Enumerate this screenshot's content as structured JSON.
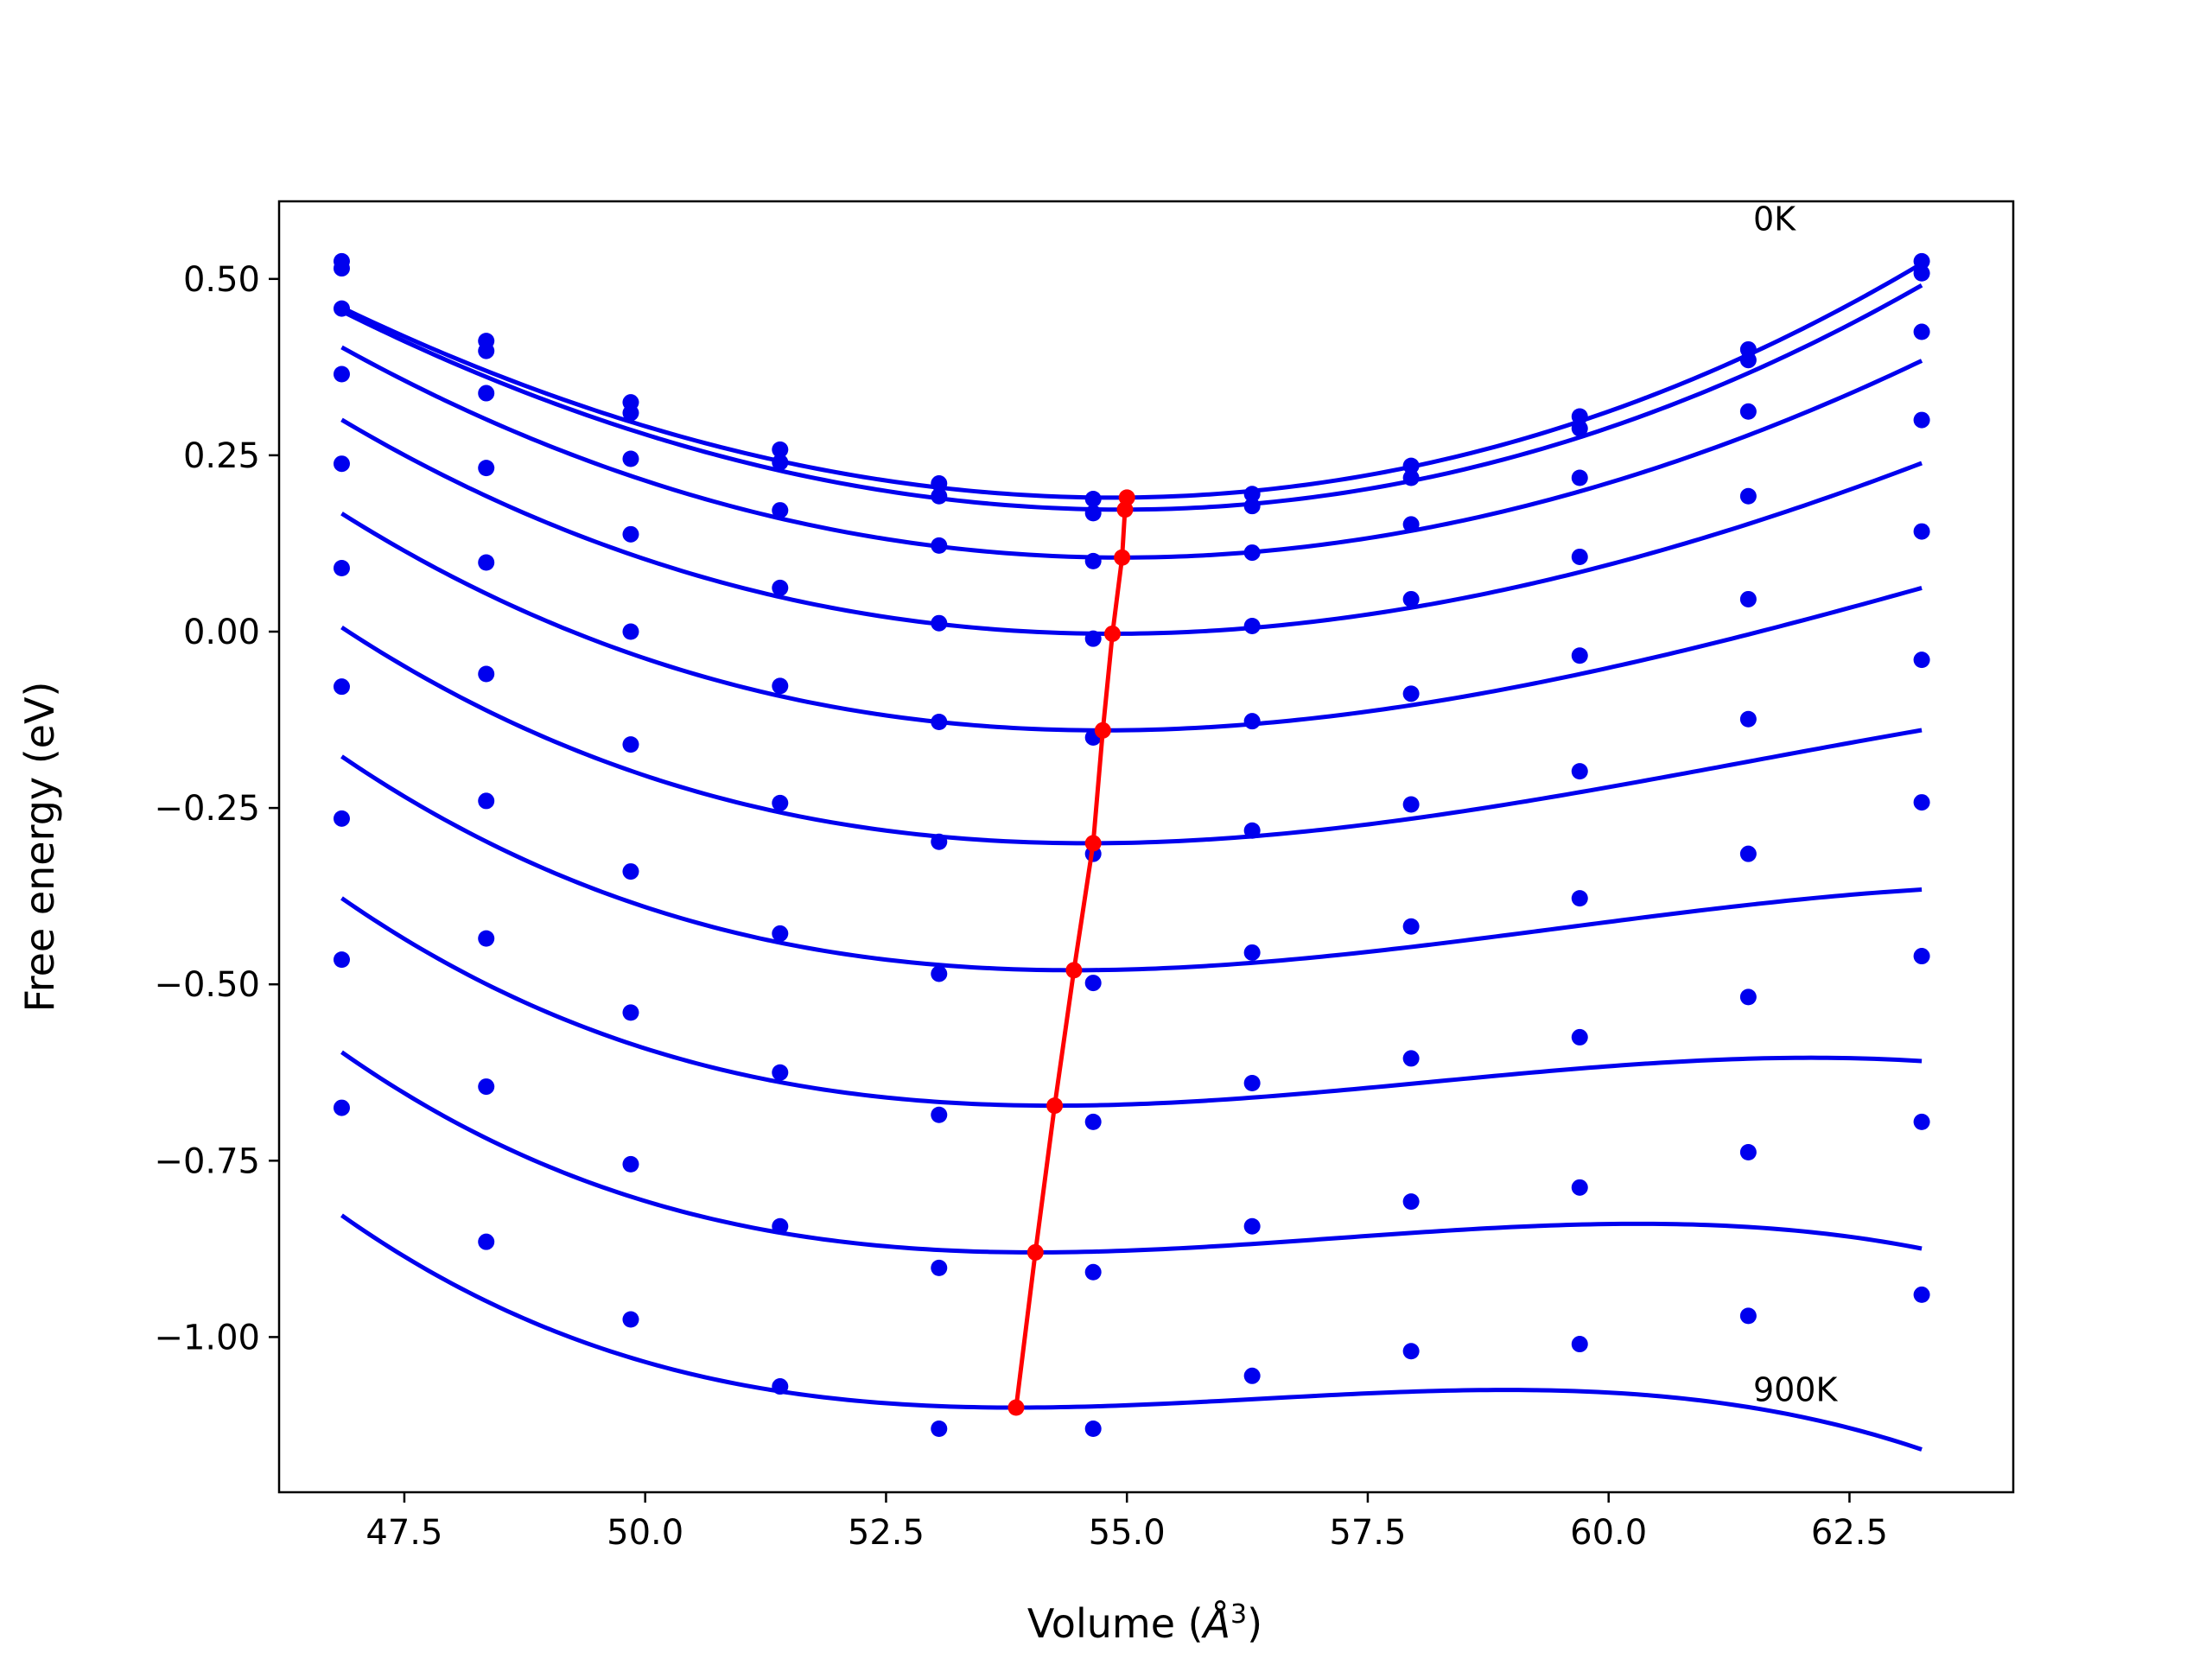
{
  "chart_data": {
    "type": "line",
    "xlabel": "Volume (",
    "xlabel_unit": "Å",
    "xlabel_exp": "3",
    "xlabel_close": ")",
    "ylabel": "Free energy (eV)",
    "xlim": [
      46.2,
      64.2
    ],
    "ylim": [
      -1.22,
      0.61
    ],
    "x_ticks": [
      47.5,
      50.0,
      52.5,
      55.0,
      57.5,
      60.0,
      62.5
    ],
    "x_tick_labels": [
      "47.5",
      "50.0",
      "52.5",
      "55.0",
      "57.5",
      "60.0",
      "62.5"
    ],
    "y_ticks": [
      0.5,
      0.25,
      0.0,
      -0.25,
      -0.5,
      -0.75,
      -1.0
    ],
    "y_tick_labels": [
      "0.50",
      "0.25",
      "0.00",
      "−0.25",
      "−0.50",
      "−0.75",
      "−1.00"
    ],
    "grid": false,
    "legend": "none",
    "annotations": [
      {
        "text": "0K",
        "x": 61.5,
        "y": 0.585
      },
      {
        "text": "900K",
        "x": 61.5,
        "y": -1.075
      }
    ],
    "volumes": [
      46.85,
      48.35,
      49.85,
      51.4,
      53.05,
      54.65,
      56.3,
      57.95,
      59.7,
      61.45,
      63.25
    ],
    "series": [
      {
        "points": [
          0.525,
          0.412,
          0.325,
          0.258,
          0.21,
          0.188,
          0.195,
          0.235,
          0.305,
          0.4,
          0.525
        ],
        "fit": {
          "v0": 54.85,
          "e0": 0.19,
          "a": 0.00445,
          "b": 3e-05
        }
      },
      {
        "points": [
          0.515,
          0.398,
          0.31,
          0.24,
          0.192,
          0.168,
          0.178,
          0.218,
          0.288,
          0.385,
          0.508
        ],
        "fit": {
          "v0": 54.95,
          "e0": 0.173,
          "a": 0.00445,
          "b": 2e-05
        }
      },
      {
        "points": [
          0.458,
          0.338,
          0.245,
          0.172,
          0.122,
          0.1,
          0.112,
          0.152,
          0.218,
          0.312,
          0.425
        ],
        "fit": {
          "v0": 54.95,
          "e0": 0.105,
          "a": 0.0043,
          "b": -3e-05
        }
      },
      {
        "points": [
          0.365,
          0.232,
          0.138,
          0.062,
          0.012,
          -0.01,
          0.008,
          0.046,
          0.106,
          0.192,
          0.3
        ],
        "fit": {
          "v0": 54.85,
          "e0": -0.003,
          "a": 0.0041,
          "b": -8e-05
        }
      },
      {
        "points": [
          0.238,
          0.098,
          0.0,
          -0.077,
          -0.128,
          -0.15,
          -0.127,
          -0.088,
          -0.034,
          0.046,
          0.142
        ],
        "fit": {
          "v0": 54.75,
          "e0": -0.14,
          "a": 0.0039,
          "b": -0.00013
        }
      },
      {
        "points": [
          0.09,
          -0.06,
          -0.16,
          -0.243,
          -0.298,
          -0.315,
          -0.282,
          -0.245,
          -0.198,
          -0.124,
          -0.04
        ],
        "fit": {
          "v0": 54.6,
          "e0": -0.3,
          "a": 0.0037,
          "b": -0.00018
        }
      },
      {
        "points": [
          -0.078,
          -0.24,
          -0.34,
          -0.428,
          -0.485,
          -0.498,
          -0.455,
          -0.418,
          -0.378,
          -0.315,
          -0.242
        ],
        "fit": {
          "v0": 54.45,
          "e0": -0.48,
          "a": 0.0035,
          "b": -0.00023
        }
      },
      {
        "points": [
          -0.265,
          -0.435,
          -0.54,
          -0.625,
          -0.685,
          -0.695,
          -0.64,
          -0.605,
          -0.575,
          -0.518,
          -0.46
        ],
        "fit": {
          "v0": 54.25,
          "e0": -0.672,
          "a": 0.0033,
          "b": -0.00028
        }
      },
      {
        "points": [
          -0.465,
          -0.645,
          -0.755,
          -0.843,
          -0.902,
          -0.908,
          -0.843,
          -0.808,
          -0.788,
          -0.738,
          -0.695
        ],
        "fit": {
          "v0": 54.05,
          "e0": -0.88,
          "a": 0.0031,
          "b": -0.00033
        }
      },
      {
        "points": [
          -0.675,
          -0.865,
          -0.975,
          -1.07,
          -1.13,
          -1.13,
          -1.055,
          -1.02,
          -1.01,
          -0.97,
          -0.94
        ],
        "fit": {
          "v0": 53.85,
          "e0": -1.1,
          "a": 0.0029,
          "b": -0.00038
        }
      }
    ],
    "minima_line": {
      "x": [
        55.0,
        54.98,
        54.95,
        54.85,
        54.75,
        54.65,
        54.45,
        54.25,
        54.05,
        53.85
      ],
      "y": [
        0.19,
        0.173,
        0.105,
        -0.003,
        -0.14,
        -0.3,
        -0.48,
        -0.672,
        -0.88,
        -1.1
      ]
    },
    "colors": {
      "fit": "#0000ee",
      "points": "#0000ee",
      "minima": "#ff0000",
      "axes": "#000000"
    }
  }
}
